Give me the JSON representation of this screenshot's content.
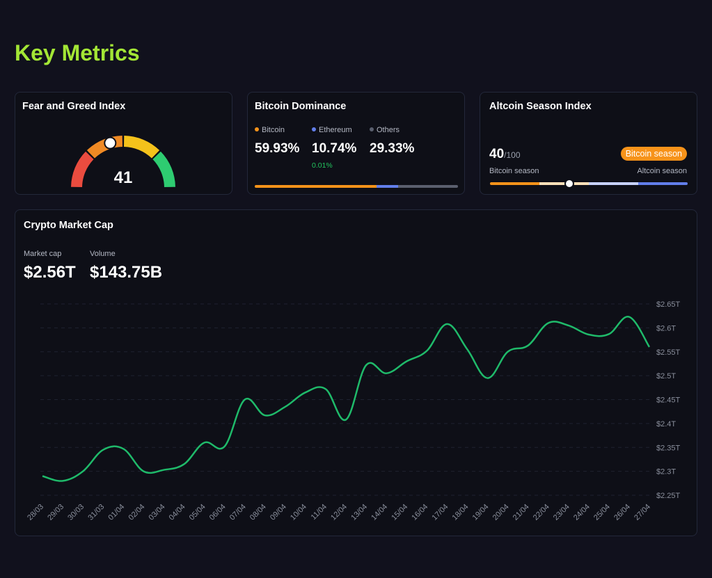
{
  "page": {
    "title": "Key Metrics"
  },
  "fear_greed": {
    "title": "Fear and Greed Index",
    "value": 41,
    "value_text": "41",
    "colors": [
      "#ea4c3f",
      "#f08a24",
      "#f4c21b",
      "#2ecc71"
    ]
  },
  "dominance": {
    "title": "Bitcoin Dominance",
    "items": [
      {
        "name": "Bitcoin",
        "value": "59.93%",
        "color": "#f7931a"
      },
      {
        "name": "Ethereum",
        "value": "10.74%",
        "change": "0.01%",
        "color": "#627eea"
      },
      {
        "name": "Others",
        "value": "29.33%",
        "color": "#5a5f6e"
      }
    ],
    "bar_fractions": [
      59.93,
      10.74,
      29.33
    ]
  },
  "altcoin": {
    "title": "Altcoin Season Index",
    "value": "40",
    "max": "/100",
    "badge": "Bitcoin season",
    "left_label": "Bitcoin season",
    "right_label": "Altcoin season",
    "level": 40
  },
  "market": {
    "title": "Crypto Market Cap",
    "cap_label": "Market cap",
    "cap_value": "$2.56T",
    "volume_label": "Volume",
    "volume_value": "$143.75B"
  },
  "chart_data": {
    "type": "line",
    "x": [
      "28/03",
      "29/03",
      "30/03",
      "31/03",
      "01/04",
      "02/04",
      "03/04",
      "04/04",
      "05/04",
      "06/04",
      "07/04",
      "08/04",
      "09/04",
      "10/04",
      "11/04",
      "12/04",
      "13/04",
      "14/04",
      "15/04",
      "16/04",
      "17/04",
      "18/04",
      "19/04",
      "20/04",
      "21/04",
      "22/04",
      "23/04",
      "24/04",
      "25/04",
      "26/04",
      "27/04"
    ],
    "series": [
      {
        "values": [
          2.29,
          2.28,
          2.3,
          2.345,
          2.347,
          2.3,
          2.303,
          2.315,
          2.36,
          2.352,
          2.45,
          2.417,
          2.435,
          2.465,
          2.472,
          2.408,
          2.522,
          2.505,
          2.53,
          2.552,
          2.608,
          2.555,
          2.495,
          2.55,
          2.563,
          2.61,
          2.605,
          2.586,
          2.587,
          2.623,
          2.56
        ]
      }
    ],
    "y_ticks": [
      "$2.25T",
      "$2.3T",
      "$2.35T",
      "$2.4T",
      "$2.45T",
      "$2.5T",
      "$2.55T",
      "$2.6T",
      "$2.65T"
    ],
    "ylim": [
      2.25,
      2.65
    ],
    "line_color": "#1fba6a",
    "grid": true
  }
}
